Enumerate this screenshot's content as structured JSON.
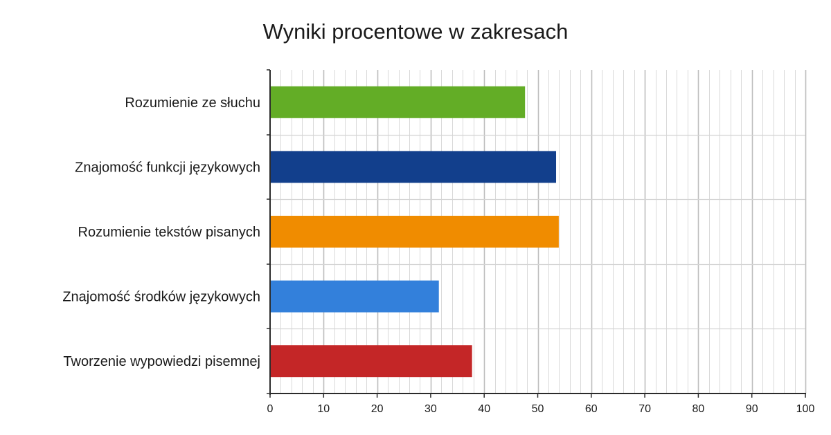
{
  "chart_data": {
    "type": "bar",
    "orientation": "horizontal",
    "title": "Wyniki procentowe w zakresach",
    "xlabel": "",
    "ylabel": "",
    "xlim": [
      0,
      100
    ],
    "x_ticks": [
      0,
      10,
      20,
      30,
      40,
      50,
      60,
      70,
      80,
      90,
      100
    ],
    "minor_grid_step": 2,
    "grid": true,
    "categories": [
      "Rozumienie ze słuchu",
      "Znajomość funkcji językowych",
      "Rozumienie tekstów pisanych",
      "Znajomość środków językowych",
      "Tworzenie wypowiedzi pisemnej"
    ],
    "values": [
      47.5,
      53.3,
      53.8,
      31.4,
      37.6
    ],
    "colors": [
      "#63ad26",
      "#123f8c",
      "#f08c00",
      "#3380db",
      "#c42627"
    ]
  }
}
